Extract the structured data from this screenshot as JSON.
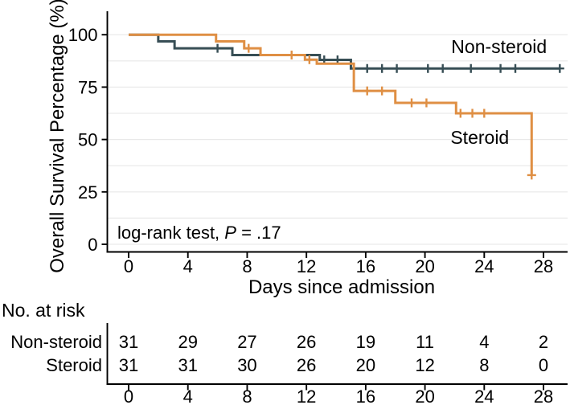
{
  "chart_data": {
    "type": "line",
    "subtype": "kaplan-meier-step",
    "title": "",
    "xlabel": "Days since admission",
    "ylabel": "Overall Survival Percentage (%)",
    "xlim": [
      0,
      29.6
    ],
    "ylim": [
      0,
      100
    ],
    "x_ticks": [
      0,
      4,
      8,
      12,
      16,
      20,
      24,
      28
    ],
    "y_ticks": [
      0,
      25,
      50,
      75,
      100
    ],
    "grid": {
      "horizontal_step": 12.5,
      "color": "#E9E9E9"
    },
    "legend_position": "labels-in-plot",
    "annotation": {
      "prefix": "log-rank test, ",
      "p_symbol": "P",
      "suffix": " = .17"
    },
    "series": [
      {
        "name": "Non-steroid",
        "color": "#374E55",
        "label_pos": {
          "day": 25.0,
          "pct": 94.3
        },
        "steps": [
          [
            0,
            100
          ],
          [
            2,
            96.8
          ],
          [
            3.1,
            93.5
          ],
          [
            7,
            90.3
          ],
          [
            12.9,
            88.0
          ],
          [
            15,
            83.9
          ]
        ],
        "end_day": 29.1,
        "censor_marks": [
          [
            6,
            93.5
          ],
          [
            13.2,
            88.0
          ],
          [
            14.1,
            88.0
          ],
          [
            16.1,
            83.9
          ],
          [
            17.1,
            83.9
          ],
          [
            18.1,
            83.9
          ],
          [
            20.2,
            83.9
          ],
          [
            21.2,
            83.9
          ],
          [
            23.1,
            83.9
          ],
          [
            25.1,
            83.9
          ],
          [
            26.1,
            83.9
          ],
          [
            29.1,
            83.9
          ]
        ]
      },
      {
        "name": "Steroid",
        "color": "#DF8F44",
        "label_pos": {
          "day": 23.7,
          "pct": 51.0
        },
        "steps": [
          [
            0,
            100
          ],
          [
            5.9,
            96.8
          ],
          [
            7.8,
            93.5
          ],
          [
            8.9,
            90.3
          ],
          [
            11.9,
            88.1
          ],
          [
            12.7,
            86.2
          ],
          [
            15.2,
            73.2
          ],
          [
            18,
            67.5
          ],
          [
            22.1,
            62.5
          ],
          [
            27.2,
            33.0
          ]
        ],
        "end_day": 27.2,
        "censor_marks": [
          [
            8.1,
            93.5
          ],
          [
            11,
            90.3
          ],
          [
            12.2,
            88.1
          ],
          [
            16.1,
            73.2
          ],
          [
            17.1,
            73.2
          ],
          [
            19.1,
            67.5
          ],
          [
            20.1,
            67.5
          ],
          [
            22.4,
            62.5
          ],
          [
            23.2,
            62.5
          ],
          [
            24,
            62.5
          ],
          [
            27.2,
            33.0
          ]
        ]
      }
    ]
  },
  "risk_table": {
    "title": "No. at risk",
    "days": [
      0,
      4,
      8,
      12,
      16,
      20,
      24,
      28
    ],
    "rows": [
      {
        "name": "Non-steroid",
        "color": "#374E55",
        "values": [
          31,
          29,
          27,
          26,
          19,
          11,
          4,
          2
        ]
      },
      {
        "name": "Steroid",
        "color": "#DF8F44",
        "values": [
          31,
          31,
          30,
          26,
          20,
          12,
          8,
          0
        ]
      }
    ]
  }
}
